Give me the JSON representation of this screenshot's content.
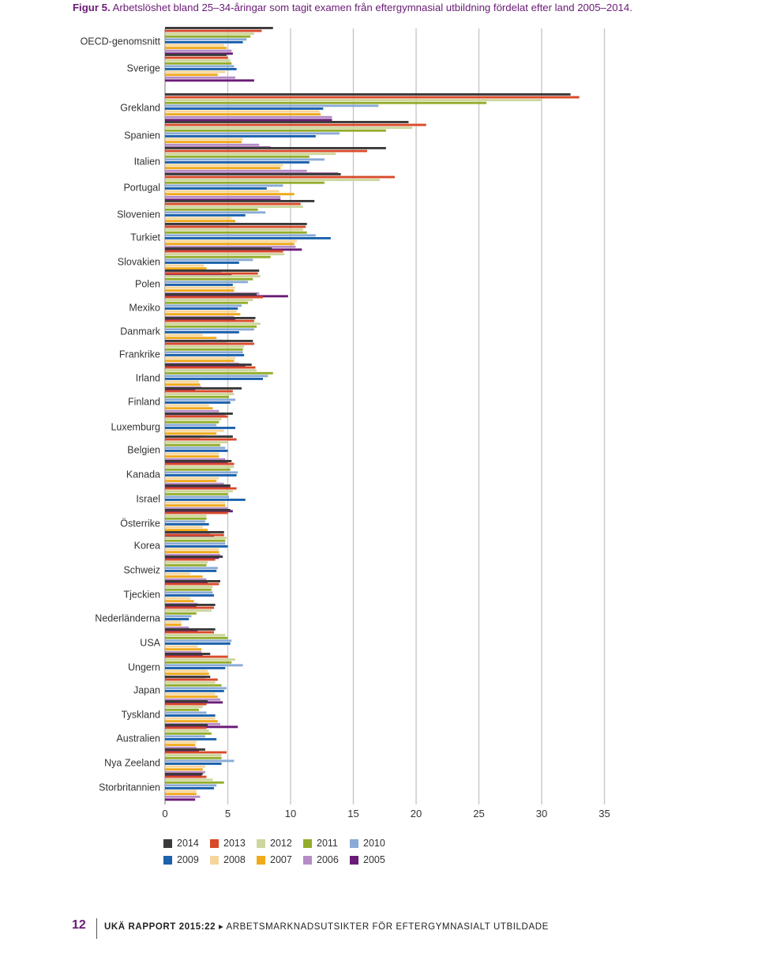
{
  "figure": {
    "label": "Figur 5.",
    "title": "Arbetslöshet bland 25–34-åringar som tagit examen från eftergymnasial utbildning fördelat efter land 2005–2014."
  },
  "footer": {
    "page_number": "12",
    "report": "UKÄ RAPPORT 2015:22",
    "arrow": "▸",
    "subtitle": "ARBETSMARKNADSUTSIKTER FÖR EFTERGYMNASIALT UTBILDADE"
  },
  "chart_data": {
    "type": "bar",
    "orientation": "horizontal",
    "xlim": [
      0,
      35
    ],
    "x_ticks": [
      "0",
      "5",
      "10",
      "15",
      "20",
      "25",
      "30",
      "35"
    ],
    "grid": true,
    "legend_position": "bottom",
    "categories": [
      "OECD-genomsnitt",
      "Sverige",
      "Grekland",
      "Spanien",
      "Italien",
      "Portugal",
      "Slovenien",
      "Turkiet",
      "Slovakien",
      "Polen",
      "Mexiko",
      "Danmark",
      "Frankrike",
      "Irland",
      "Finland",
      "Luxemburg",
      "Belgien",
      "Kanada",
      "Israel",
      "Österrike",
      "Korea",
      "Schweiz",
      "Tjeckien",
      "Nederländerna",
      "USA",
      "Ungern",
      "Japan",
      "Tyskland",
      "Australien",
      "Nya Zeeland",
      "Storbritannien"
    ],
    "series": [
      {
        "name": "2014",
        "color": "#3a3a3a",
        "values": [
          8.6,
          4.9,
          32.3,
          19.4,
          17.6,
          14.0,
          11.9,
          11.3,
          8.5,
          7.5,
          7.3,
          7.2,
          7.0,
          6.9,
          6.1,
          5.4,
          5.4,
          5.3,
          5.2,
          5.2,
          4.7,
          4.6,
          4.4,
          4.0,
          4.0,
          3.6,
          3.6,
          3.4,
          3.4,
          3.2,
          3.0
        ]
      },
      {
        "name": "2013",
        "color": "#d84a2a",
        "values": [
          7.7,
          5.0,
          33.0,
          20.8,
          16.1,
          18.3,
          10.8,
          11.2,
          9.4,
          7.4,
          7.8,
          7.1,
          7.1,
          7.2,
          5.4,
          5.0,
          5.7,
          5.5,
          5.7,
          5.0,
          4.7,
          4.0,
          4.3,
          3.9,
          3.9,
          5.0,
          4.2,
          3.3,
          3.3,
          4.9,
          3.3
        ]
      },
      {
        "name": "2012",
        "color": "#cdd69c",
        "values": [
          7.1,
          5.2,
          30.0,
          19.7,
          13.6,
          17.1,
          11.0,
          11.0,
          9.5,
          7.6,
          7.0,
          7.6,
          6.3,
          7.3,
          5.5,
          4.5,
          5.0,
          5.5,
          5.4,
          3.3,
          4.9,
          3.4,
          3.8,
          3.7,
          4.8,
          5.6,
          4.0,
          3.0,
          3.5,
          4.5,
          3.8
        ]
      },
      {
        "name": "2011",
        "color": "#93ad2b",
        "values": [
          6.8,
          5.3,
          25.6,
          17.6,
          11.5,
          12.7,
          7.4,
          11.3,
          8.4,
          7.0,
          6.6,
          7.3,
          6.2,
          8.6,
          5.1,
          4.3,
          4.4,
          5.2,
          5.0,
          3.3,
          4.8,
          3.3,
          3.7,
          2.5,
          5.0,
          5.3,
          4.5,
          2.7,
          3.7,
          4.5,
          4.7
        ]
      },
      {
        "name": "2010",
        "color": "#8aaad6",
        "values": [
          6.5,
          5.5,
          17.0,
          13.9,
          12.7,
          9.4,
          8.0,
          12.0,
          7.0,
          6.6,
          6.1,
          7.1,
          6.2,
          8.2,
          5.6,
          4.1,
          4.8,
          5.8,
          5.1,
          3.2,
          4.8,
          4.2,
          3.8,
          2.1,
          5.3,
          6.2,
          4.9,
          3.3,
          3.2,
          5.5,
          4.1
        ]
      },
      {
        "name": "2009",
        "color": "#1c62ad",
        "values": [
          6.2,
          5.7,
          12.6,
          12.0,
          11.5,
          8.1,
          6.4,
          13.2,
          5.9,
          5.4,
          5.8,
          5.9,
          6.3,
          7.8,
          5.2,
          5.6,
          5.0,
          5.7,
          6.4,
          3.5,
          5.0,
          4.1,
          3.9,
          1.9,
          5.2,
          4.8,
          4.7,
          4.0,
          4.1,
          4.5,
          3.9
        ]
      },
      {
        "name": "2008",
        "color": "#f6d59a",
        "values": [
          4.7,
          4.8,
          12.3,
          6.2,
          9.4,
          9.1,
          5.3,
          10.5,
          3.1,
          5.6,
          5.7,
          3.0,
          5.6,
          2.7,
          3.5,
          4.7,
          4.3,
          4.3,
          4.8,
          3.0,
          4.3,
          2.0,
          2.0,
          1.3,
          2.6,
          3.4,
          4.0,
          4.0,
          2.5,
          3.2,
          2.5
        ]
      },
      {
        "name": "2007",
        "color": "#f0aa1a",
        "values": [
          4.9,
          4.2,
          12.4,
          6.1,
          9.2,
          10.3,
          5.6,
          10.3,
          3.3,
          5.5,
          6.0,
          4.1,
          5.5,
          2.8,
          3.8,
          4.1,
          4.3,
          4.1,
          4.8,
          3.4,
          4.3,
          3.0,
          2.3,
          1.3,
          2.9,
          3.5,
          4.2,
          4.2,
          2.4,
          3.0,
          2.5
        ]
      },
      {
        "name": "2006",
        "color": "#b68cc6",
        "values": [
          5.3,
          5.6,
          13.3,
          7.5,
          11.3,
          9.2,
          5.9,
          10.4,
          4.5,
          7.5,
          5.5,
          4.6,
          5.9,
          2.9,
          4.3,
          3.2,
          4.8,
          4.7,
          5.0,
          3.6,
          4.4,
          3.3,
          2.6,
          1.9,
          2.9,
          3.3,
          4.4,
          4.4,
          2.5,
          3.2,
          2.8
        ]
      },
      {
        "name": "2005",
        "color": "#6a1b77",
        "values": [
          5.4,
          7.1,
          13.3,
          8.4,
          13.8,
          9.2,
          5.1,
          10.9,
          5.3,
          9.8,
          5.6,
          4.9,
          6.4,
          2.4,
          4.8,
          2.8,
          5.0,
          5.2,
          5.4,
          3.9,
          4.3,
          3.4,
          2.5,
          2.6,
          3.0,
          3.2,
          4.6,
          5.8,
          2.7,
          2.9,
          2.4
        ]
      }
    ]
  }
}
